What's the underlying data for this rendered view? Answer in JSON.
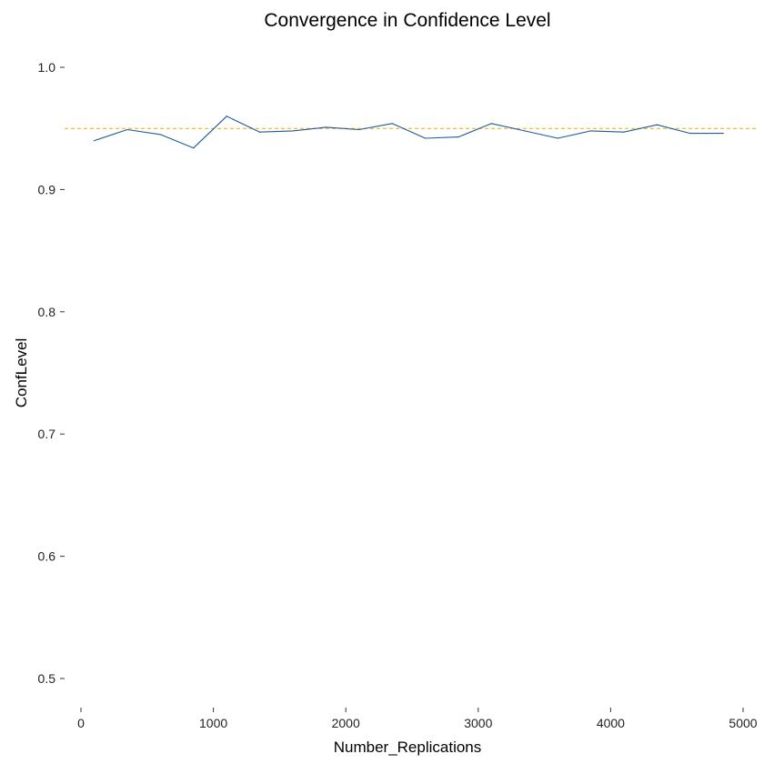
{
  "chart_data": {
    "type": "line",
    "title": "Convergence in Confidence Level",
    "xlabel": "Number_Replications",
    "ylabel": "ConfLevel",
    "xlim": [
      0,
      5000
    ],
    "ylim": [
      0.5,
      1.0
    ],
    "x_ticks": [
      0,
      1000,
      2000,
      3000,
      4000,
      5000
    ],
    "y_ticks": [
      0.5,
      0.6,
      0.7,
      0.8,
      0.9,
      1.0
    ],
    "x_tick_labels": [
      "0",
      "1000",
      "2000",
      "3000",
      "4000",
      "5000"
    ],
    "y_tick_labels": [
      "0.5",
      "0.6",
      "0.7",
      "0.8",
      "0.9",
      "1.0"
    ],
    "grid": false,
    "series": [
      {
        "color": "#1f5b99",
        "x": [
          100,
          350,
          600,
          850,
          1100,
          1350,
          1600,
          1850,
          2100,
          2350,
          2600,
          2850,
          3100,
          3350,
          3600,
          3850,
          4100,
          4350,
          4600,
          4850
        ],
        "y": [
          0.94,
          0.949,
          0.945,
          0.934,
          0.96,
          0.947,
          0.948,
          0.951,
          0.949,
          0.954,
          0.942,
          0.943,
          0.954,
          0.948,
          0.942,
          0.948,
          0.947,
          0.953,
          0.946,
          0.946
        ]
      }
    ],
    "reference_line": {
      "y": 0.95,
      "color": "#f5a800",
      "style": "dashed"
    }
  }
}
